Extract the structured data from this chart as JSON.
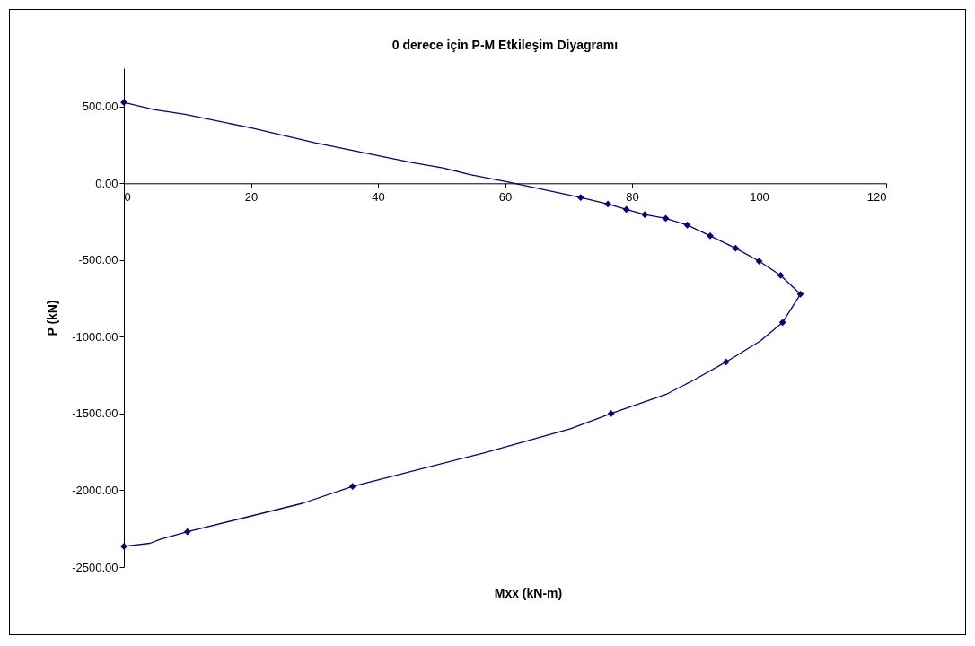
{
  "chart_data": {
    "type": "line",
    "title": "0 derece için P-M  Etkileşim Diyagramı",
    "xlabel": "Mxx (kN-m)",
    "ylabel": "P (kN)",
    "xlim": [
      0,
      120
    ],
    "xticks": [
      0,
      20,
      40,
      60,
      80,
      100,
      120
    ],
    "ylim": [
      -2500,
      750
    ],
    "yticks": [
      {
        "value": -2500,
        "label": "-2500.00"
      },
      {
        "value": -2000,
        "label": "-2000.00"
      },
      {
        "value": -1500,
        "label": "-1500.00"
      },
      {
        "value": -1000,
        "label": "-1000.00"
      },
      {
        "value": -500,
        "label": "-500.00"
      },
      {
        "value": 0,
        "label": "0.00"
      },
      {
        "value": 500,
        "label": "500.00"
      }
    ],
    "grid": false,
    "series": [
      {
        "color": "#000080",
        "marker": "none",
        "x": [
          0,
          4.7,
          9.6,
          20.1,
          30.1,
          45.3,
          50.2,
          54.5,
          60.5,
          71.9,
          76.2,
          79.1,
          82.0,
          85.3,
          88.7,
          92.3,
          96.3,
          100.0,
          103.4,
          106.5,
          103.7,
          100.2,
          94.8,
          89.8,
          85.5,
          76.7,
          70.4,
          56.8,
          36.0,
          28.1,
          10.0,
          5.7,
          4.1,
          0
        ],
        "values": [
          527,
          481,
          450,
          360,
          264,
          135,
          101,
          56,
          9,
          -92,
          -135,
          -170,
          -204,
          -229,
          -272,
          -342,
          -423,
          -507,
          -600,
          -722,
          -906,
          -1027,
          -1164,
          -1280,
          -1372,
          -1500,
          -1597,
          -1755,
          -1974,
          -2085,
          -2270,
          -2319,
          -2345,
          -2365
        ]
      },
      {
        "type": "scatter",
        "color": "#000080",
        "marker": "diamond",
        "x": [
          0,
          71.9,
          76.2,
          79.1,
          82.0,
          85.3,
          88.7,
          92.3,
          96.3,
          100.0,
          103.4,
          106.5,
          103.7,
          94.8,
          76.7,
          36.0,
          10.0,
          0
        ],
        "values": [
          527,
          -92,
          -135,
          -170,
          -204,
          -229,
          -272,
          -342,
          -423,
          -507,
          -600,
          -722,
          -906,
          -1164,
          -1500,
          -1974,
          -2270,
          -2365
        ]
      }
    ]
  }
}
